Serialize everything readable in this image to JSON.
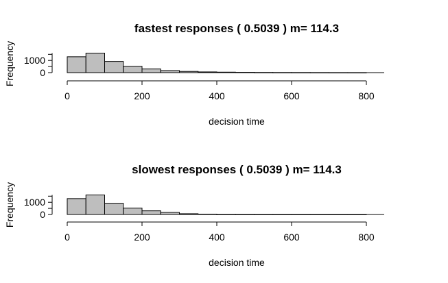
{
  "chart_data": [
    {
      "type": "bar",
      "title": "fastest responses ( 0.5039 ) m= 114.3",
      "xlabel": "decision time",
      "ylabel": "Frequency",
      "bin_edges": [
        0,
        50,
        100,
        150,
        200,
        250,
        300,
        350,
        400,
        450,
        500,
        550,
        600,
        650,
        700,
        750,
        800
      ],
      "values": [
        1300,
        1600,
        920,
        520,
        300,
        170,
        100,
        60,
        40,
        25,
        15,
        10,
        8,
        5,
        3,
        2
      ],
      "x_ticks": [
        "0",
        "200",
        "400",
        "600",
        "800"
      ],
      "x_tick_values": [
        0,
        200,
        400,
        600,
        800
      ],
      "y_ticks": [
        "0",
        "1000"
      ],
      "y_tick_values": [
        0,
        1000
      ],
      "xlim": [
        0,
        850
      ],
      "ylim": [
        0,
        1600
      ]
    },
    {
      "type": "bar",
      "title": "slowest responses ( 0.5039 ) m= 114.3",
      "xlabel": "decision time",
      "ylabel": "Frequency",
      "bin_edges": [
        0,
        50,
        100,
        150,
        200,
        250,
        300,
        350,
        400,
        450,
        500,
        550,
        600,
        650,
        700,
        750,
        800
      ],
      "values": [
        1300,
        1600,
        920,
        520,
        300,
        170,
        60,
        30,
        8,
        5,
        3,
        2,
        2,
        1,
        1,
        1
      ],
      "x_ticks": [
        "0",
        "200",
        "400",
        "600",
        "800"
      ],
      "x_tick_values": [
        0,
        200,
        400,
        600,
        800
      ],
      "y_ticks": [
        "0",
        "1000"
      ],
      "y_tick_values": [
        0,
        1000
      ],
      "xlim": [
        0,
        850
      ],
      "ylim": [
        0,
        1600
      ]
    }
  ]
}
